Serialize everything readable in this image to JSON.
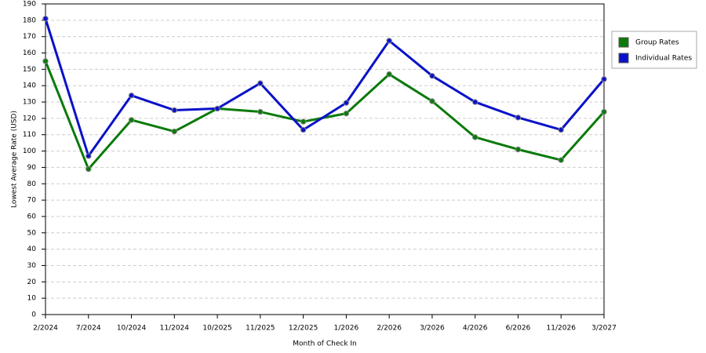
{
  "chart_data": {
    "type": "line",
    "x_label": "Month of Check In",
    "y_label": "Lowest Average Rate (USD)",
    "categories": [
      "2/2024",
      "7/2024",
      "10/2024",
      "11/2024",
      "10/2025",
      "11/2025",
      "12/2025",
      "1/2026",
      "2/2026",
      "3/2026",
      "4/2026",
      "6/2026",
      "11/2026",
      "3/2027"
    ],
    "series": [
      {
        "name": "Group Rates",
        "color": "#0a7a0a",
        "values": [
          155,
          89,
          119,
          112,
          126,
          124,
          118,
          123,
          147,
          130.5,
          108.5,
          101,
          94.5,
          124
        ]
      },
      {
        "name": "Individual Rates",
        "color": "#0a12c8",
        "values": [
          181,
          97,
          134,
          125,
          126,
          141.5,
          113,
          129.5,
          167.5,
          146,
          130,
          120.5,
          113,
          144
        ]
      }
    ],
    "ylim": [
      0,
      190
    ],
    "yticks": [
      0,
      10,
      20,
      30,
      40,
      50,
      60,
      70,
      80,
      90,
      100,
      110,
      120,
      130,
      140,
      150,
      160,
      170,
      180,
      190
    ],
    "grid": true,
    "legend": "right"
  }
}
